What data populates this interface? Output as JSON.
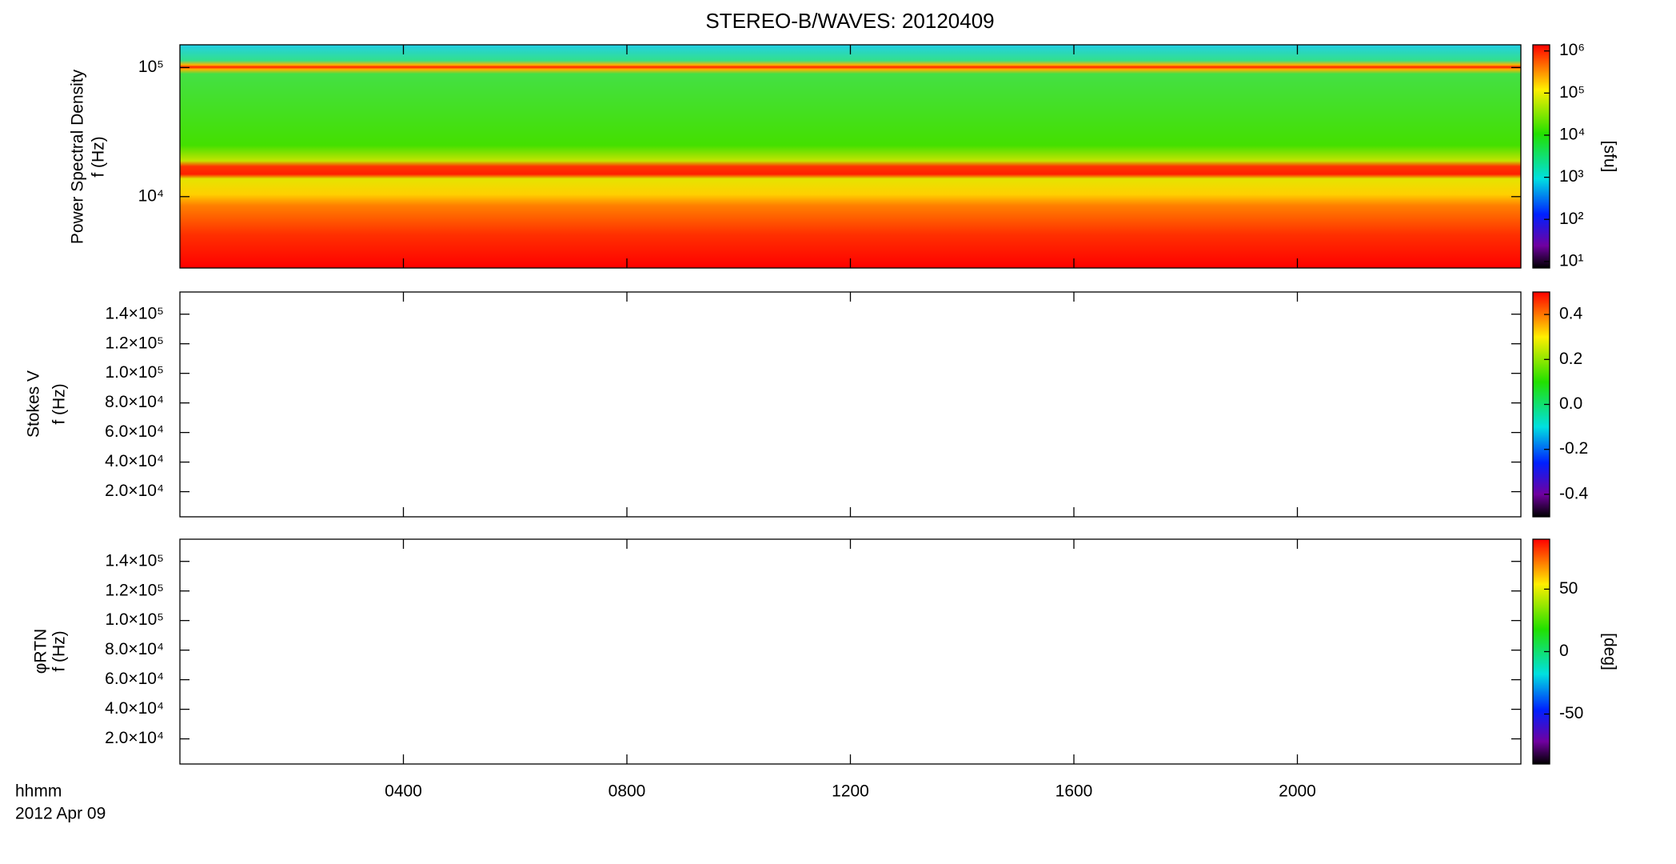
{
  "title": "STEREO-B/WAVES: 20120409",
  "x_axis": {
    "label": "hhmm",
    "sublabel": "2012 Apr 09",
    "xlim": [
      0,
      24
    ],
    "xticks": [
      {
        "value": 4,
        "label": "0400"
      },
      {
        "value": 8,
        "label": "0800"
      },
      {
        "value": 12,
        "label": "1200"
      },
      {
        "value": 16,
        "label": "1600"
      },
      {
        "value": 20,
        "label": "2000"
      }
    ]
  },
  "chart_data": [
    {
      "type": "spectrogram",
      "ylabel": [
        "Power Spectral Density",
        "f (Hz)"
      ],
      "ylog": true,
      "ylim": [
        2800,
        150000
      ],
      "yticks": [
        {
          "value": 10000,
          "label": "10⁴"
        },
        {
          "value": 100000,
          "label": "10⁵"
        }
      ],
      "zlog": true,
      "zlim": [
        7,
        1400000
      ],
      "zticks": [
        {
          "value": 10,
          "label": "10¹"
        },
        {
          "value": 100,
          "label": "10²"
        },
        {
          "value": 1000,
          "label": "10³"
        },
        {
          "value": 10000,
          "label": "10⁴"
        },
        {
          "value": 100000,
          "label": "10⁵"
        },
        {
          "value": 1000000,
          "label": "10⁶"
        }
      ],
      "zlabel": "[sfu]"
    },
    {
      "type": "spectrogram",
      "ylabel": [
        "Stokes V",
        "f (Hz)"
      ],
      "ylog": false,
      "ylim": [
        3000,
        155000
      ],
      "yticks": [
        {
          "value": 20000,
          "label": "2.0×10⁴"
        },
        {
          "value": 40000,
          "label": "4.0×10⁴"
        },
        {
          "value": 60000,
          "label": "6.0×10⁴"
        },
        {
          "value": 80000,
          "label": "8.0×10⁴"
        },
        {
          "value": 100000,
          "label": "1.0×10⁵"
        },
        {
          "value": 120000,
          "label": "1.2×10⁵"
        },
        {
          "value": 140000,
          "label": "1.4×10⁵"
        }
      ],
      "zlog": false,
      "zlim": [
        -0.5,
        0.5
      ],
      "zticks": [
        -0.4,
        -0.2,
        {
          "value": 0,
          "label": "0.0"
        },
        0.2,
        0.4
      ]
    },
    {
      "type": "spectrogram",
      "ylabel": [
        "φRTN",
        "f (Hz)"
      ],
      "ylog": false,
      "ylim": [
        3000,
        155000
      ],
      "yticks": [
        {
          "value": 20000,
          "label": "2.0×10⁴"
        },
        {
          "value": 40000,
          "label": "4.0×10⁴"
        },
        {
          "value": 60000,
          "label": "6.0×10⁴"
        },
        {
          "value": 80000,
          "label": "8.0×10⁴"
        },
        {
          "value": 100000,
          "label": "1.0×10⁵"
        },
        {
          "value": 120000,
          "label": "1.2×10⁵"
        },
        {
          "value": 140000,
          "label": "1.4×10⁵"
        }
      ],
      "zlog": false,
      "zlim": [
        -90,
        90
      ],
      "zticks": [
        -50,
        0,
        50
      ],
      "zlabel": "[deg]"
    }
  ]
}
